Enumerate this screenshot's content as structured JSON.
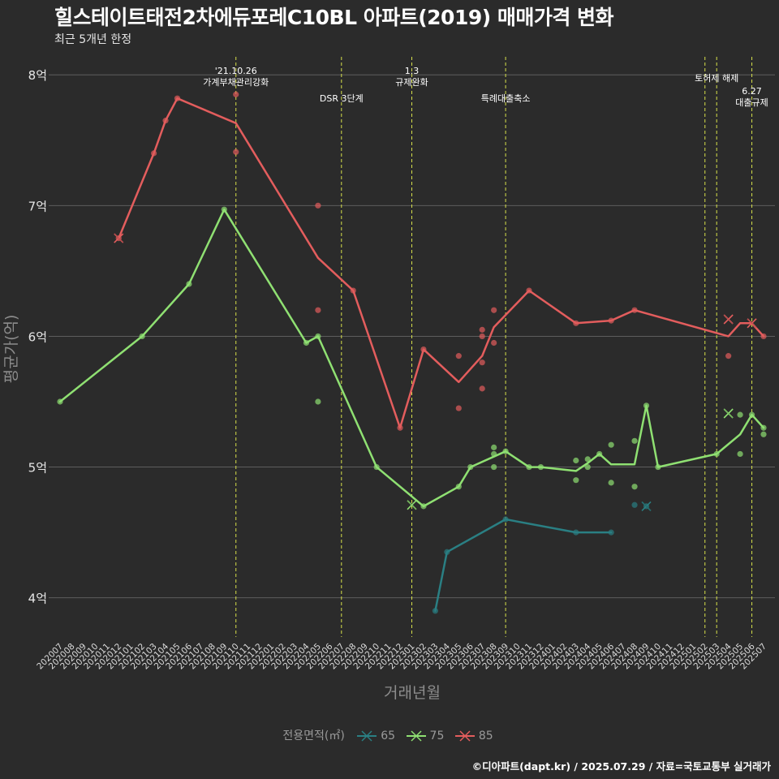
{
  "title": "힐스테이트태전2차에듀포레C10BL 아파트(2019) 매매가격 변화",
  "subtitle": "최근 5개년 한정",
  "caption": "©디아파트(dapt.kr) / 2025.07.29 / 자료=국토교통부 실거래가",
  "legend": {
    "title": "전용면적(㎡)",
    "items": [
      {
        "label": "65",
        "color": "#2a7f83"
      },
      {
        "label": "75",
        "color": "#8fe072"
      },
      {
        "label": "85",
        "color": "#e35d5d"
      }
    ]
  },
  "chart_data": {
    "type": "line",
    "xlabel": "거래년월",
    "ylabel": "평균가(억)",
    "ylim": [
      3.7,
      8.2
    ],
    "yticks": [
      4,
      5,
      6,
      7,
      8
    ],
    "ytick_labels": [
      "4억",
      "5억",
      "6억",
      "7억",
      "8억"
    ],
    "grid": true,
    "legend_position": "bottom",
    "x_categories": [
      "202007",
      "202008",
      "202009",
      "202010",
      "202011",
      "202012",
      "202101",
      "202102",
      "202103",
      "202104",
      "202105",
      "202106",
      "202107",
      "202108",
      "202109",
      "202110",
      "202111",
      "202112",
      "202201",
      "202202",
      "202203",
      "202204",
      "202205",
      "202206",
      "202207",
      "202208",
      "202209",
      "202210",
      "202211",
      "202212",
      "202301",
      "202302",
      "202303",
      "202304",
      "202305",
      "202306",
      "202307",
      "202308",
      "202309",
      "202310",
      "202311",
      "202312",
      "202401",
      "202402",
      "202403",
      "202404",
      "202405",
      "202406",
      "202407",
      "202408",
      "202409",
      "202410",
      "202411",
      "202412",
      "202501",
      "202502",
      "202503",
      "202504",
      "202505",
      "202506",
      "202507"
    ],
    "events": [
      {
        "x": "202110",
        "lines": [
          "'21.10.26",
          "가계부채관리강화"
        ],
        "row": 0
      },
      {
        "x": "202207",
        "lines": [
          "DSR 3단계"
        ],
        "row": 2
      },
      {
        "x": "202301",
        "lines": [
          "1.3",
          "규제완화"
        ],
        "row": 0
      },
      {
        "x": "202309",
        "lines": [
          "특례대출축소"
        ],
        "row": 2
      },
      {
        "x": "202502",
        "lines": [],
        "row": 1
      },
      {
        "x": "202503",
        "lines": [
          "토허제 해제"
        ],
        "row": 1
      },
      {
        "x": "202506",
        "lines": [
          "6.27",
          "대출규제"
        ],
        "row": 3
      }
    ],
    "series": [
      {
        "name": "65",
        "color": "#2a7f83",
        "line": [
          [
            "202303",
            3.9
          ],
          [
            "202304",
            4.35
          ],
          [
            "202309",
            4.6
          ],
          [
            "202403",
            4.5
          ],
          [
            "202406",
            4.5
          ]
        ],
        "points": [
          [
            "202303",
            3.9
          ],
          [
            "202304",
            4.35
          ],
          [
            "202309",
            4.6
          ],
          [
            "202403",
            4.5
          ],
          [
            "202406",
            4.5
          ],
          [
            "202408",
            4.71
          ],
          [
            "202409",
            4.7
          ]
        ],
        "latest": [
          [
            "202409",
            4.7
          ]
        ]
      },
      {
        "name": "75",
        "color": "#8fe072",
        "line": [
          [
            "202007",
            5.5
          ],
          [
            "202102",
            6.0
          ],
          [
            "202106",
            6.4
          ],
          [
            "202109",
            6.97
          ],
          [
            "202204",
            5.95
          ],
          [
            "202205",
            6.0
          ],
          [
            "202210",
            5.0
          ],
          [
            "202302",
            4.7
          ],
          [
            "202305",
            4.85
          ],
          [
            "202306",
            5.0
          ],
          [
            "202309",
            5.12
          ],
          [
            "202311",
            5.0
          ],
          [
            "202312",
            5.0
          ],
          [
            "202403",
            4.97
          ],
          [
            "202404",
            5.03
          ],
          [
            "202405",
            5.1
          ],
          [
            "202406",
            5.02
          ],
          [
            "202408",
            5.02
          ],
          [
            "202409",
            5.47
          ],
          [
            "202410",
            5.0
          ],
          [
            "202503",
            5.1
          ],
          [
            "202505",
            5.25
          ],
          [
            "202506",
            5.4
          ],
          [
            "202507",
            5.3
          ]
        ],
        "points": [
          [
            "202007",
            5.5
          ],
          [
            "202102",
            6.0
          ],
          [
            "202106",
            6.4
          ],
          [
            "202109",
            6.97
          ],
          [
            "202204",
            5.95
          ],
          [
            "202205",
            6.0
          ],
          [
            "202205",
            5.5
          ],
          [
            "202210",
            5.0
          ],
          [
            "202302",
            4.7
          ],
          [
            "202305",
            4.85
          ],
          [
            "202306",
            5.0
          ],
          [
            "202308",
            5.15
          ],
          [
            "202308",
            5.1
          ],
          [
            "202308",
            5.0
          ],
          [
            "202309",
            5.12
          ],
          [
            "202311",
            5.0
          ],
          [
            "202312",
            5.0
          ],
          [
            "202403",
            5.05
          ],
          [
            "202403",
            4.9
          ],
          [
            "202404",
            5.06
          ],
          [
            "202404",
            5.0
          ],
          [
            "202405",
            5.1
          ],
          [
            "202406",
            5.17
          ],
          [
            "202406",
            4.88
          ],
          [
            "202408",
            5.2
          ],
          [
            "202408",
            4.85
          ],
          [
            "202409",
            5.47
          ],
          [
            "202410",
            5.0
          ],
          [
            "202503",
            5.1
          ],
          [
            "202505",
            5.4
          ],
          [
            "202505",
            5.1
          ],
          [
            "202506",
            5.4
          ],
          [
            "202507",
            5.3
          ],
          [
            "202507",
            5.25
          ]
        ],
        "latest": [
          [
            "202301",
            4.71
          ],
          [
            "202504",
            5.41
          ]
        ]
      },
      {
        "name": "85",
        "color": "#e35d5d",
        "line": [
          [
            "202012",
            6.75
          ],
          [
            "202103",
            7.4
          ],
          [
            "202104",
            7.65
          ],
          [
            "202105",
            7.82
          ],
          [
            "202110",
            7.63
          ],
          [
            "202205",
            6.6
          ],
          [
            "202208",
            6.35
          ],
          [
            "202212",
            5.3
          ],
          [
            "202302",
            5.9
          ],
          [
            "202305",
            5.65
          ],
          [
            "202307",
            5.85
          ],
          [
            "202308",
            6.07
          ],
          [
            "202311",
            6.35
          ],
          [
            "202403",
            6.1
          ],
          [
            "202406",
            6.12
          ],
          [
            "202408",
            6.2
          ],
          [
            "202504",
            6.0
          ],
          [
            "202505",
            6.1
          ],
          [
            "202506",
            6.1
          ],
          [
            "202507",
            6.0
          ]
        ],
        "points": [
          [
            "202012",
            6.75
          ],
          [
            "202103",
            7.4
          ],
          [
            "202104",
            7.65
          ],
          [
            "202105",
            7.82
          ],
          [
            "202110",
            7.85
          ],
          [
            "202110",
            7.41
          ],
          [
            "202205",
            7.0
          ],
          [
            "202205",
            6.2
          ],
          [
            "202208",
            6.35
          ],
          [
            "202212",
            5.3
          ],
          [
            "202302",
            5.9
          ],
          [
            "202305",
            5.85
          ],
          [
            "202305",
            5.45
          ],
          [
            "202307",
            6.05
          ],
          [
            "202307",
            6.0
          ],
          [
            "202307",
            5.8
          ],
          [
            "202307",
            5.6
          ],
          [
            "202308",
            6.2
          ],
          [
            "202308",
            5.95
          ],
          [
            "202311",
            6.35
          ],
          [
            "202403",
            6.1
          ],
          [
            "202406",
            6.12
          ],
          [
            "202408",
            6.2
          ],
          [
            "202504",
            5.85
          ],
          [
            "202507",
            6.0
          ]
        ],
        "latest": [
          [
            "202012",
            6.75
          ],
          [
            "202504",
            6.13
          ],
          [
            "202506",
            6.1
          ]
        ]
      }
    ]
  }
}
